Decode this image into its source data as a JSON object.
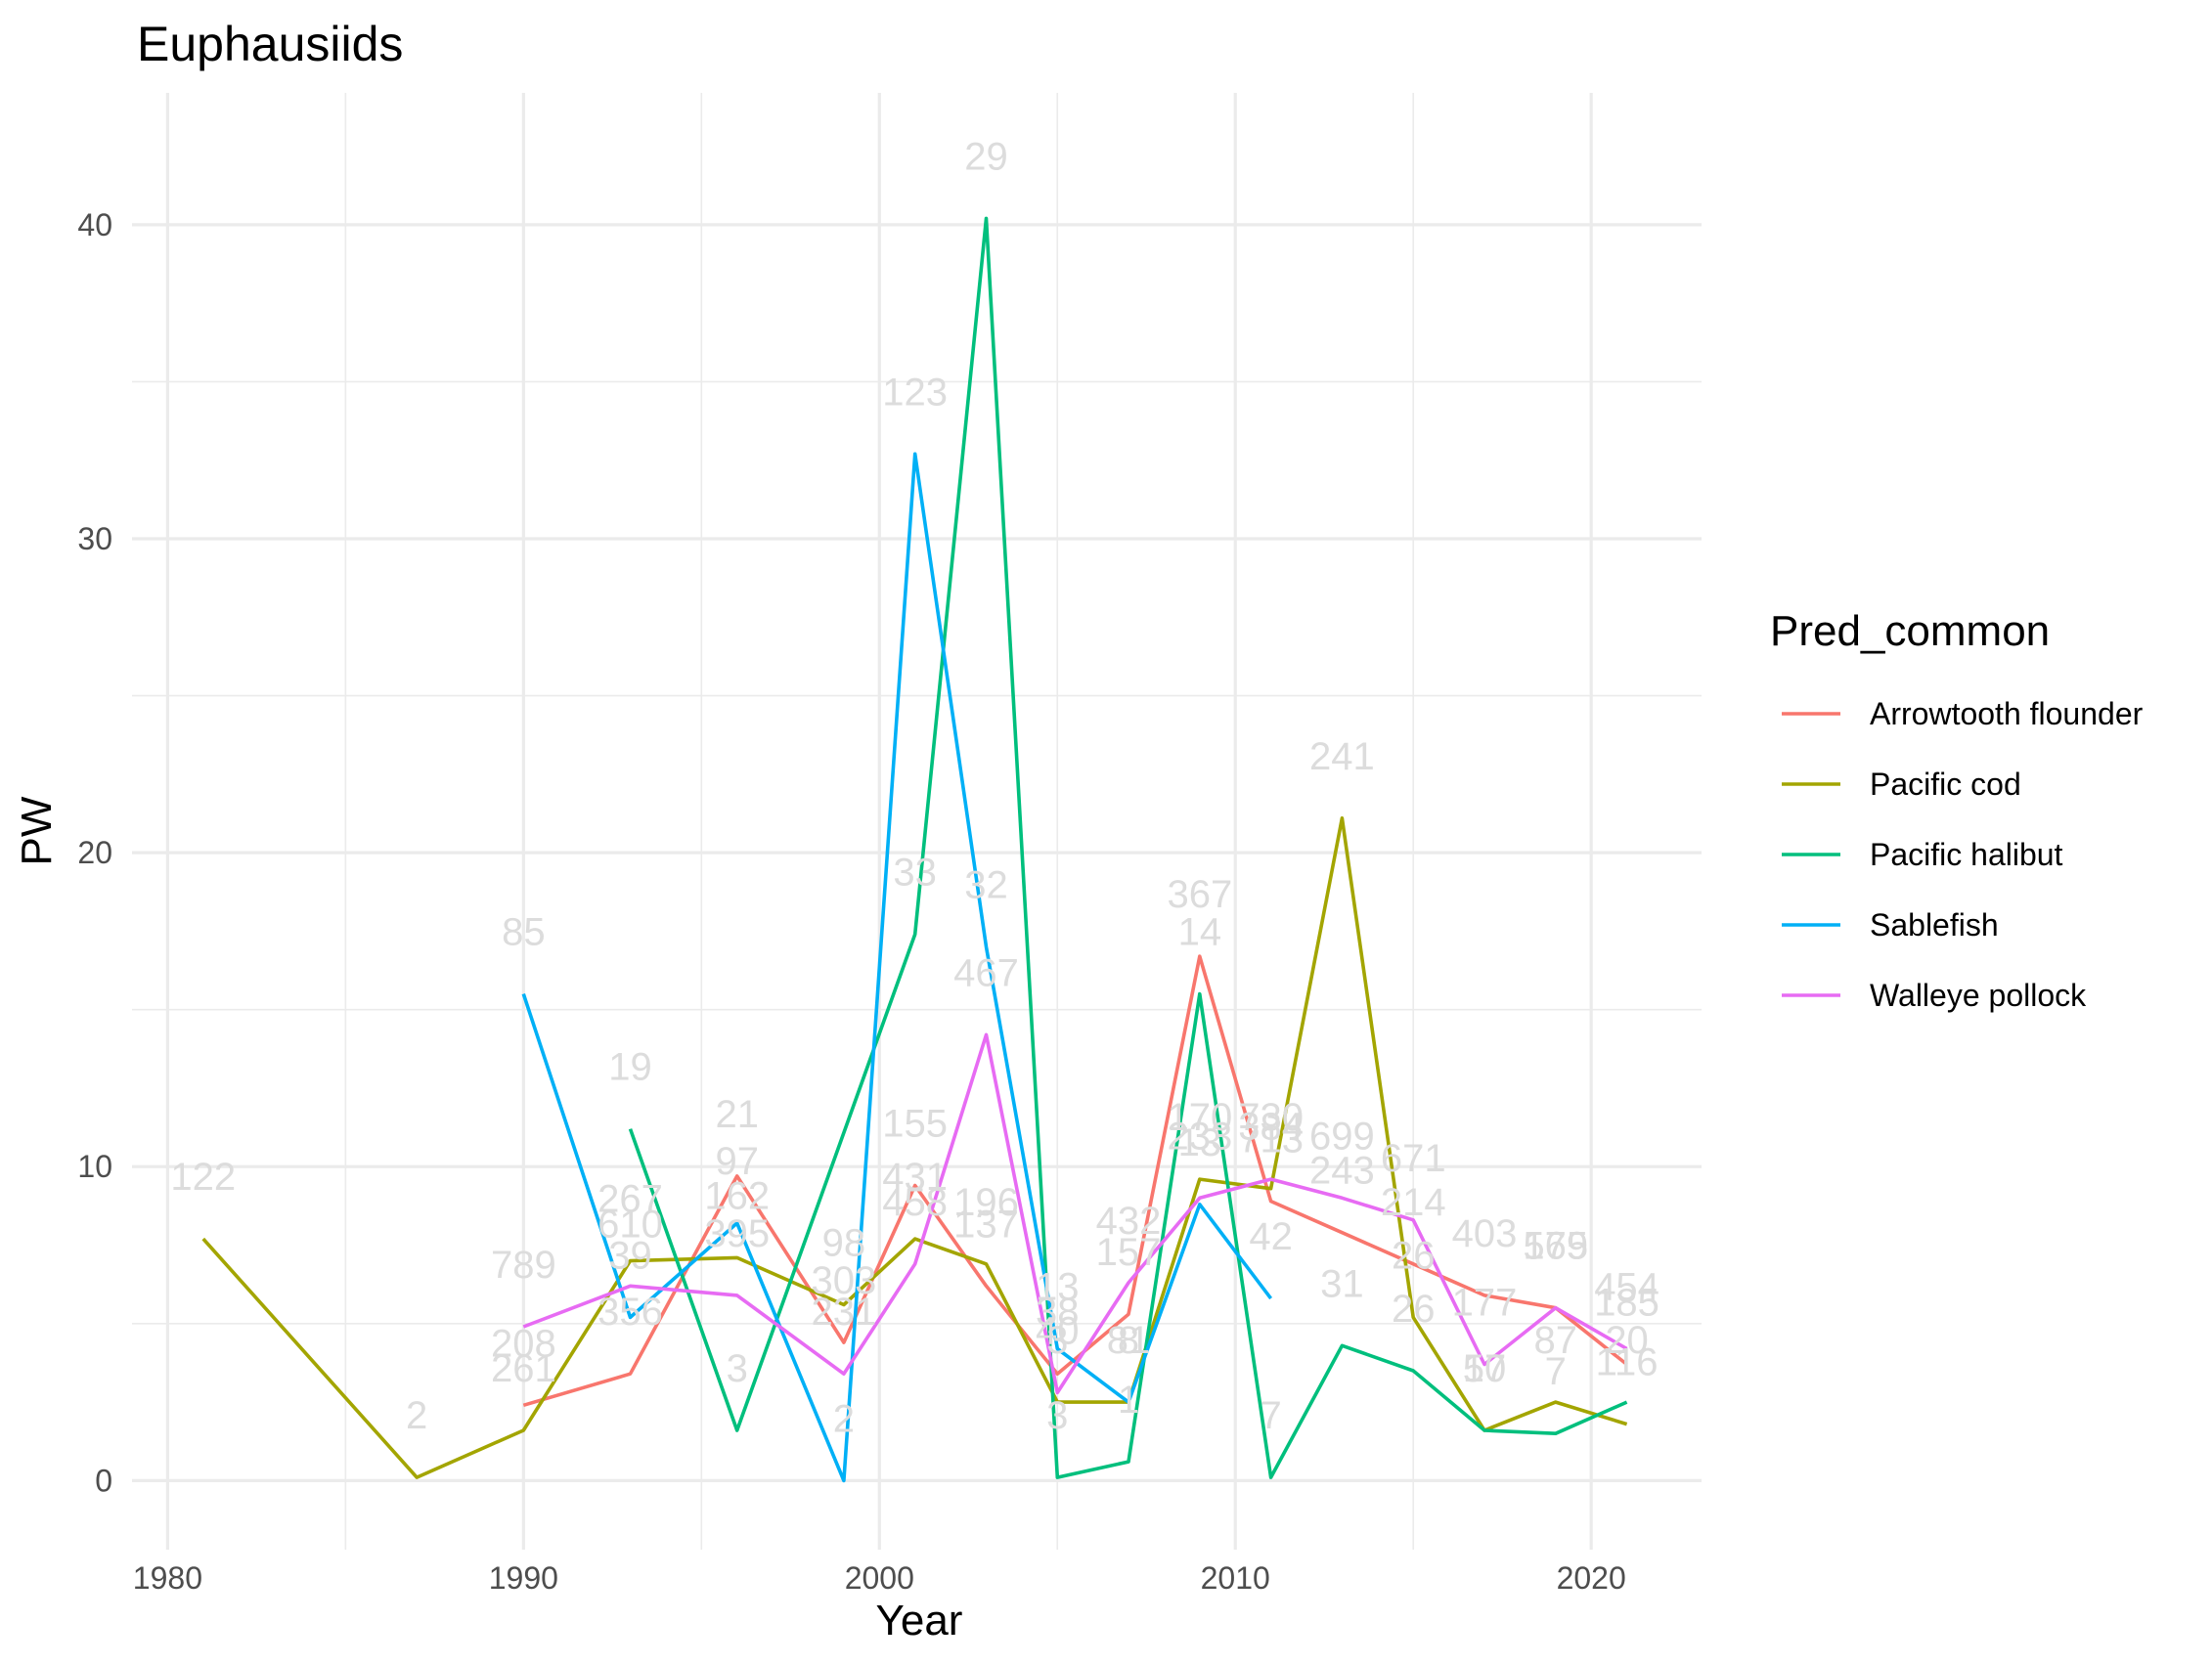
{
  "chart_data": {
    "type": "line",
    "title": "Euphausiids",
    "xlabel": "Year",
    "ylabel": "PW",
    "xlim": [
      1979,
      2023.1
    ],
    "ylim": [
      -2.2,
      44.2
    ],
    "x_ticks": [
      1980,
      1990,
      2000,
      2010,
      2020
    ],
    "x_minor": [
      1985,
      1995,
      2005,
      2015
    ],
    "y_ticks": [
      0,
      10,
      20,
      30,
      40
    ],
    "y_minor": [
      5,
      15,
      25,
      35
    ],
    "grid": true,
    "legend": {
      "title": "Pred_common",
      "position": "right"
    },
    "series": [
      {
        "name": "Arrowtooth flounder",
        "color": "#F8766D",
        "points": [
          {
            "x": 1990,
            "y": 2.4,
            "label": "208"
          },
          {
            "x": 1993,
            "y": 3.4,
            "label": "356"
          },
          {
            "x": 1996,
            "y": 9.7,
            "label": "21"
          },
          {
            "x": 1999,
            "y": 4.4,
            "label": "303"
          },
          {
            "x": 2001,
            "y": 9.4,
            "label": "155"
          },
          {
            "x": 2003,
            "y": 6.2,
            "label": "137"
          },
          {
            "x": 2005,
            "y": 3.4,
            "label": "38"
          },
          {
            "x": 2007,
            "y": 5.3,
            "label": "157"
          },
          {
            "x": 2009,
            "y": 16.7,
            "label": "367"
          },
          {
            "x": 2011,
            "y": 8.9,
            "label": "713"
          },
          {
            "x": 2013,
            "y": 7.9,
            "label": "243"
          },
          {
            "x": 2015,
            "y": 6.9,
            "label": "214"
          },
          {
            "x": 2017,
            "y": 5.9,
            "label": "403"
          },
          {
            "x": 2019,
            "y": 5.5,
            "label": "165"
          },
          {
            "x": 2021,
            "y": 3.7,
            "label": "185"
          }
        ]
      },
      {
        "name": "Pacific cod",
        "color": "#A3A500",
        "points": [
          {
            "x": 1981,
            "y": 7.7,
            "label": "122"
          },
          {
            "x": 1987,
            "y": 0.1,
            "label": "2"
          },
          {
            "x": 1990,
            "y": 1.6,
            "label": "261"
          },
          {
            "x": 1993,
            "y": 7.0,
            "label": "267"
          },
          {
            "x": 1996,
            "y": 7.1,
            "label": "162"
          },
          {
            "x": 1999,
            "y": 5.6,
            "label": "98"
          },
          {
            "x": 2001,
            "y": 7.7,
            "label": "431"
          },
          {
            "x": 2003,
            "y": 6.9,
            "label": "196"
          },
          {
            "x": 2005,
            "y": 2.5,
            "label": "3"
          },
          {
            "x": 2007,
            "y": 2.5,
            "label": "81"
          },
          {
            "x": 2009,
            "y": 9.6,
            "label": "170"
          },
          {
            "x": 2011,
            "y": 9.3,
            "label": "384"
          },
          {
            "x": 2013,
            "y": 21.1,
            "label": "241"
          },
          {
            "x": 2015,
            "y": 5.2,
            "label": "26"
          },
          {
            "x": 2017,
            "y": 1.6,
            "label": "50"
          },
          {
            "x": 2019,
            "y": 2.5,
            "label": "87"
          },
          {
            "x": 2021,
            "y": 1.8,
            "label": "116"
          }
        ]
      },
      {
        "name": "Pacific halibut",
        "color": "#00BF7D",
        "points": [
          {
            "x": 1993,
            "y": 11.2,
            "label": "19"
          },
          {
            "x": 1996,
            "y": 1.6,
            "label": "3"
          },
          {
            "x": 2001,
            "y": 17.4,
            "label": "33"
          },
          {
            "x": 2003,
            "y": 40.2,
            "label": "29"
          },
          {
            "x": 2005,
            "y": 0.1,
            "label": "3"
          },
          {
            "x": 2007,
            "y": 0.6,
            "label": "1"
          },
          {
            "x": 2009,
            "y": 15.5,
            "label": "14"
          },
          {
            "x": 2011,
            "y": 0.1,
            "label": "7"
          },
          {
            "x": 2013,
            "y": 4.3,
            "label": "31"
          },
          {
            "x": 2015,
            "y": 3.5,
            "label": "26"
          },
          {
            "x": 2017,
            "y": 1.6,
            "label": "17"
          },
          {
            "x": 2019,
            "y": 1.5,
            "label": "7"
          },
          {
            "x": 2021,
            "y": 2.5,
            "label": "20"
          }
        ]
      },
      {
        "name": "Sablefish",
        "color": "#00B0F6",
        "points": [
          {
            "x": 1990,
            "y": 15.5,
            "label": "85"
          },
          {
            "x": 1993,
            "y": 5.2,
            "label": "39"
          },
          {
            "x": 1996,
            "y": 8.2,
            "label": "97"
          },
          {
            "x": 1999,
            "y": 0.0,
            "label": "2"
          },
          {
            "x": 2001,
            "y": 32.7,
            "label": "123"
          },
          {
            "x": 2003,
            "y": 17.0,
            "label": "32"
          },
          {
            "x": 2005,
            "y": 4.2,
            "label": "13"
          },
          {
            "x": 2007,
            "y": 2.5,
            "label": "8"
          },
          {
            "x": 2009,
            "y": 8.8,
            "label": "13"
          },
          {
            "x": 2011,
            "y": 5.8,
            "label": "42"
          }
        ]
      },
      {
        "name": "Walleye pollock",
        "color": "#E76BF3",
        "points": [
          {
            "x": 1990,
            "y": 4.9,
            "label": "789"
          },
          {
            "x": 1993,
            "y": 6.2,
            "label": "610"
          },
          {
            "x": 1996,
            "y": 5.9,
            "label": "395"
          },
          {
            "x": 1999,
            "y": 3.4,
            "label": "231"
          },
          {
            "x": 2001,
            "y": 6.9,
            "label": "458"
          },
          {
            "x": 2003,
            "y": 14.2,
            "label": "467"
          },
          {
            "x": 2005,
            "y": 2.8,
            "label": "40"
          },
          {
            "x": 2007,
            "y": 6.3,
            "label": "432"
          },
          {
            "x": 2009,
            "y": 9.0,
            "label": "233"
          },
          {
            "x": 2011,
            "y": 9.6,
            "label": "730"
          },
          {
            "x": 2013,
            "y": 9.0,
            "label": "699"
          },
          {
            "x": 2015,
            "y": 8.3,
            "label": "671"
          },
          {
            "x": 2017,
            "y": 3.7,
            "label": "177"
          },
          {
            "x": 2019,
            "y": 5.5,
            "label": "579"
          },
          {
            "x": 2021,
            "y": 4.2,
            "label": "454"
          }
        ]
      }
    ]
  }
}
